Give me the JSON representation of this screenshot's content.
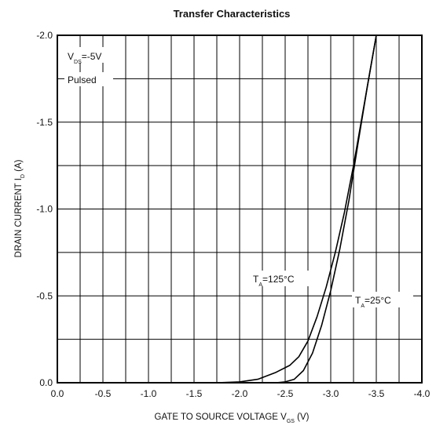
{
  "chart_data": {
    "type": "line",
    "title": "Transfer Characteristics",
    "xlabel": {
      "text": "GATE TO SOURCE VOLTAGE V",
      "sub": "GS",
      "unit": " (V)"
    },
    "ylabel": {
      "text": "DRAIN CURRENT I",
      "sub": "D",
      "unit": " (A)"
    },
    "xlim": [
      0,
      -4.0
    ],
    "ylim": [
      0,
      -2.0
    ],
    "x_ticks": [
      0,
      -0.5,
      -1.0,
      -1.5,
      -2.0,
      -2.5,
      -3.0,
      -3.5,
      -4.0
    ],
    "x_tick_labels": [
      "0.0",
      "-0.5",
      "-1.0",
      "-1.5",
      "-2.0",
      "-2.5",
      "-3.0",
      "-3.5",
      "-4.0"
    ],
    "y_ticks": [
      0,
      -0.5,
      -1.0,
      -1.5,
      -2.0
    ],
    "y_tick_labels": [
      "0.0",
      "-0.5",
      "-1.0",
      "-1.5",
      "-2.0"
    ],
    "grid": true,
    "series": [
      {
        "name": "T_A=125°C",
        "x": [
          -1.75,
          -2.0,
          -2.2,
          -2.4,
          -2.55,
          -2.65,
          -2.75,
          -2.85,
          -2.95,
          -3.05,
          -3.15,
          -3.25,
          -3.35,
          -3.5
        ],
        "y": [
          0,
          -0.005,
          -0.02,
          -0.06,
          -0.1,
          -0.15,
          -0.24,
          -0.38,
          -0.55,
          -0.75,
          -0.98,
          -1.25,
          -1.55,
          -2.0
        ]
      },
      {
        "name": "T_A=25°C",
        "x": [
          -2.4,
          -2.5,
          -2.6,
          -2.7,
          -2.8,
          -2.9,
          -3.0,
          -3.1,
          -3.2,
          -3.3,
          -3.4,
          -3.5
        ],
        "y": [
          0,
          -0.005,
          -0.02,
          -0.07,
          -0.17,
          -0.33,
          -0.53,
          -0.77,
          -1.05,
          -1.38,
          -1.7,
          -2.0
        ]
      }
    ],
    "annotations": {
      "vds": {
        "pre": "V",
        "sub": "DS",
        "post": "=-5V"
      },
      "pulsed": "Pulsed",
      "label_125": {
        "pre": "T",
        "sub": "A",
        "post": "=125°C"
      },
      "label_25": {
        "pre": "T",
        "sub": "A",
        "post": "=25°C"
      }
    }
  }
}
